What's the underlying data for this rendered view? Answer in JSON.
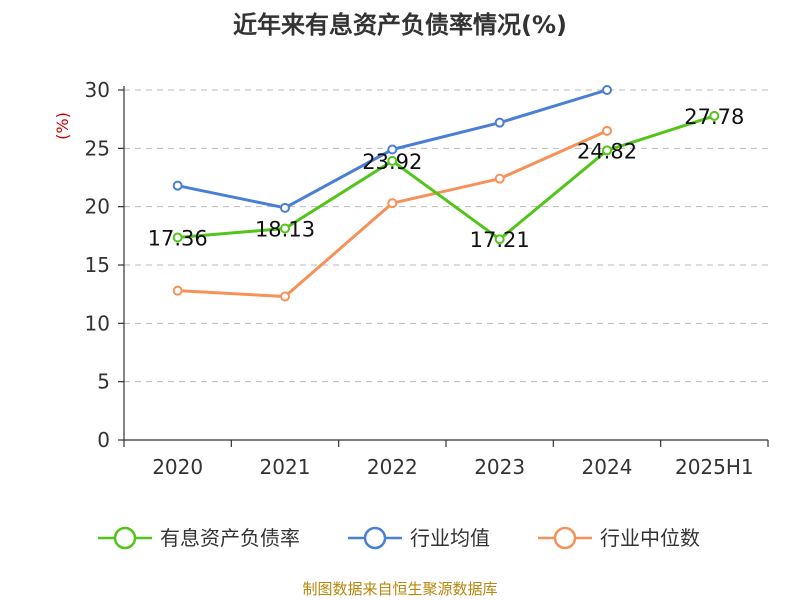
{
  "chart_data": {
    "type": "line",
    "title": "近年来有息资产负债率情况(%)",
    "ylabel": "(%)",
    "xlabel": "",
    "categories": [
      "2020",
      "2021",
      "2022",
      "2023",
      "2024",
      "2025H1"
    ],
    "ylim": [
      0,
      30
    ],
    "yticks": [
      "0",
      "5",
      "10",
      "15",
      "20",
      "25",
      "30"
    ],
    "grid": true,
    "legend_position": "bottom",
    "series": [
      {
        "name": "有息资产负债率",
        "color": "#52c41a",
        "values": [
          17.36,
          18.13,
          23.92,
          17.21,
          24.82,
          27.78
        ],
        "labels": [
          "17.36",
          "18.13",
          "23.92",
          "17.21",
          "24.82",
          "27.78"
        ]
      },
      {
        "name": "行业均值",
        "color": "#4a7fd6",
        "values": [
          21.8,
          19.9,
          24.9,
          27.2,
          30.0,
          null
        ]
      },
      {
        "name": "行业中位数",
        "color": "#f5925a",
        "values": [
          12.8,
          12.3,
          20.3,
          22.4,
          26.5,
          null
        ]
      }
    ],
    "source": "制图数据来自恒生聚源数据库"
  }
}
